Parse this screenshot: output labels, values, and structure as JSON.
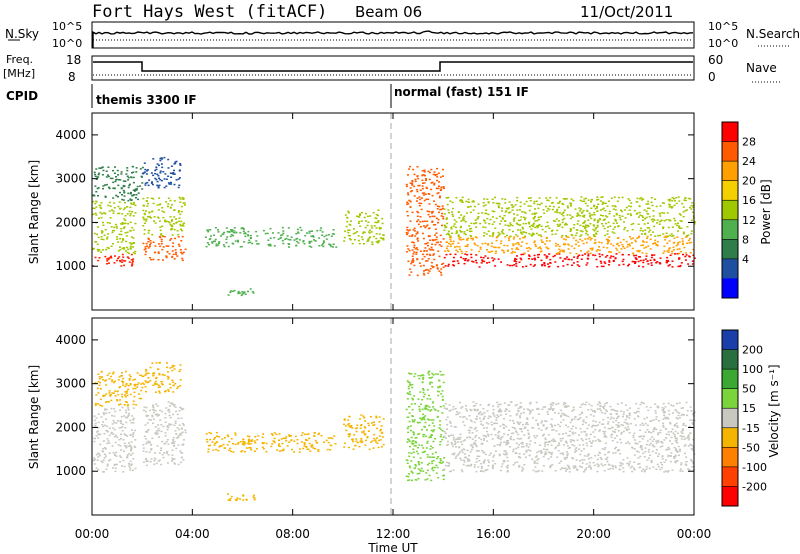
{
  "header": {
    "station": "Fort Hays West (fitACF)",
    "beam": "Beam 06",
    "date": "11/Oct/2011"
  },
  "noise_panel": {
    "left_label": "N.Sky",
    "right_label": "N.Search",
    "left_ticks": [
      "10^5",
      "10^0"
    ],
    "right_ticks": [
      "10^5",
      "10^0"
    ]
  },
  "freq_panel": {
    "left_label_top": "Freq.",
    "left_label_bottom": "[MHz]",
    "right_label": "Nave",
    "left_ticks": [
      "18",
      "8"
    ],
    "right_ticks": [
      "60",
      "0"
    ]
  },
  "cpid": {
    "label": "CPID",
    "modes": [
      {
        "name": "themis 3300 IF",
        "start_hour": 0
      },
      {
        "name": "normal (fast) 151 IF",
        "start_hour": 12
      }
    ]
  },
  "chart_data": {
    "type": "heatmap",
    "x_axis": {
      "label": "Time UT",
      "range_hours": [
        0,
        24
      ],
      "ticks": [
        "00:00",
        "04:00",
        "08:00",
        "12:00",
        "16:00",
        "20:00",
        "00:00"
      ]
    },
    "panels": [
      {
        "name": "power",
        "ylabel": "Slant Range [km]",
        "yrange": [
          0,
          4500
        ],
        "yticks": [
          "1000",
          "2000",
          "3000",
          "4000"
        ],
        "colorbar": {
          "label": "Power [dB]",
          "ticks": [
            "28",
            "24",
            "20",
            "16",
            "12",
            "8",
            "4"
          ],
          "colors": [
            "#ff0000",
            "#ff5a00",
            "#ffa000",
            "#f5d000",
            "#a0c800",
            "#50b050",
            "#2e7d4a",
            "#1e4fa0",
            "#0000ff"
          ]
        }
      },
      {
        "name": "velocity",
        "ylabel": "Slant Range [km]",
        "yrange": [
          0,
          4500
        ],
        "yticks": [
          "1000",
          "2000",
          "3000",
          "4000"
        ],
        "colorbar": {
          "label": "Velocity [m s⁻¹]",
          "ticks": [
            "200",
            "100",
            "50",
            "15",
            "-15",
            "-50",
            "-100",
            "-200"
          ],
          "colors": [
            "#1a3fa8",
            "#2a6f3f",
            "#3aa832",
            "#7cd43c",
            "#c8c8c0",
            "#f5b400",
            "#ff8000",
            "#ff4000",
            "#ff0000"
          ]
        }
      }
    ],
    "scatter_regions": [
      {
        "t0": 0.0,
        "t1": 1.7,
        "r_lo": 1000,
        "r_hi": 1300,
        "power": "#ff2000",
        "vel": "#c8c8c0"
      },
      {
        "t0": 0.0,
        "t1": 1.7,
        "r_lo": 1300,
        "r_hi": 2500,
        "power": "#a0c800",
        "vel": "#c8c8c0"
      },
      {
        "t0": 0.0,
        "t1": 2.0,
        "r_lo": 2500,
        "r_hi": 3300,
        "power": "#2e7d4a",
        "vel": "#f5b400"
      },
      {
        "t0": 2.0,
        "t1": 3.7,
        "r_lo": 1150,
        "r_hi": 1700,
        "power": "#ff5a00",
        "vel": "#c8c8c0"
      },
      {
        "t0": 2.0,
        "t1": 3.7,
        "r_lo": 1700,
        "r_hi": 2600,
        "power": "#a0c800",
        "vel": "#c8c8c0"
      },
      {
        "t0": 2.0,
        "t1": 3.5,
        "r_lo": 2800,
        "r_hi": 3500,
        "power": "#1e4fa0",
        "vel": "#f5b400"
      },
      {
        "t0": 4.5,
        "t1": 9.7,
        "r_lo": 1450,
        "r_hi": 1900,
        "power": "#50b050",
        "vel": "#f5b400"
      },
      {
        "t0": 10.0,
        "t1": 11.6,
        "r_lo": 1500,
        "r_hi": 2300,
        "power": "#a0c800",
        "vel": "#f5b400"
      },
      {
        "t0": 12.5,
        "t1": 14.0,
        "r_lo": 800,
        "r_hi": 3300,
        "power": "#ff5a00",
        "vel": "#7cd43c"
      },
      {
        "t0": 14.0,
        "t1": 24.0,
        "r_lo": 1000,
        "r_hi": 1300,
        "power": "#ff0000",
        "vel": "#c8c8c0"
      },
      {
        "t0": 14.0,
        "t1": 24.0,
        "r_lo": 1300,
        "r_hi": 1700,
        "power": "#ffa000",
        "vel": "#c8c8c0"
      },
      {
        "t0": 14.0,
        "t1": 24.0,
        "r_lo": 1700,
        "r_hi": 2600,
        "power": "#a0c800",
        "vel": "#c8c8c0"
      },
      {
        "t0": 5.3,
        "t1": 6.5,
        "r_lo": 350,
        "r_hi": 500,
        "power": "#50b050",
        "vel": "#f5b400"
      }
    ]
  }
}
